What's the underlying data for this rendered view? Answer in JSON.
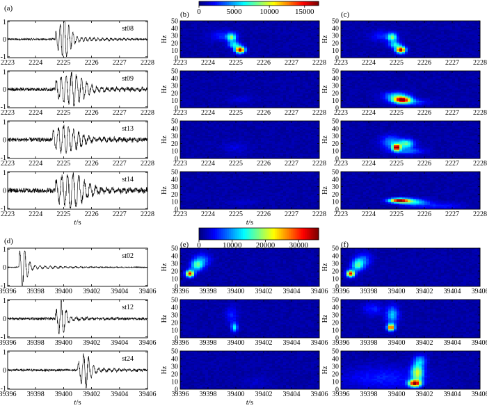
{
  "chart_data": {
    "type": "mixed",
    "panel_labels": [
      "(a)",
      "(b)",
      "(c)",
      "(d)",
      "(e)",
      "(f)"
    ],
    "colorbars": [
      {
        "ticks": [
          0,
          5000,
          10000,
          15000
        ],
        "range": [
          0,
          17000
        ],
        "colormap": "jet"
      },
      {
        "ticks": [
          0,
          10000,
          20000,
          30000
        ],
        "range": [
          0,
          36000
        ],
        "colormap": "jet"
      }
    ],
    "xlabel": "t/s",
    "ylabel_spec": "Hz",
    "groups": [
      {
        "wave_panel": "(a)",
        "spec_panels": [
          "(b)",
          "(c)"
        ],
        "xlim": [
          2223,
          2228
        ],
        "xticks": [
          2223,
          2224,
          2225,
          2226,
          2227,
          2228
        ],
        "wave_yticks": [
          -1,
          0,
          1
        ],
        "spec_yticks": [
          0,
          10,
          20,
          30,
          40,
          50
        ],
        "stations": [
          {
            "name": "st08",
            "onset": 2224.7,
            "peak": 2225.0,
            "duration": 0.6,
            "amplitude": 1.0,
            "freq_hz": 12,
            "noise": 0.06,
            "b_blobs": [
              {
                "t": 2225.15,
                "f": 11,
                "st": 0.12,
                "sf": 3,
                "a": 1.0
              },
              {
                "t": 2224.85,
                "f": 28,
                "st": 0.12,
                "sf": 4,
                "a": 0.45
              },
              {
                "t": 2224.95,
                "f": 18,
                "st": 0.15,
                "sf": 3,
                "a": 0.35
              },
              {
                "t": 2224.5,
                "f": 30,
                "st": 0.3,
                "sf": 5,
                "a": 0.12
              }
            ],
            "c_blobs": [
              {
                "t": 2225.15,
                "f": 11,
                "st": 0.12,
                "sf": 3,
                "a": 1.0
              },
              {
                "t": 2224.85,
                "f": 28,
                "st": 0.12,
                "sf": 4,
                "a": 0.45
              },
              {
                "t": 2224.95,
                "f": 18,
                "st": 0.15,
                "sf": 3,
                "a": 0.35
              },
              {
                "t": 2224.5,
                "f": 30,
                "st": 0.3,
                "sf": 5,
                "a": 0.12
              }
            ]
          },
          {
            "name": "st09",
            "onset": 2224.7,
            "peak": 2225.2,
            "duration": 1.2,
            "amplitude": 0.85,
            "freq_hz": 10,
            "noise": 0.1,
            "b_blobs": [
              {
                "t": 2225.2,
                "f": 12,
                "st": 0.3,
                "sf": 4,
                "a": 0.05
              }
            ],
            "c_blobs": [
              {
                "t": 2225.2,
                "f": 11,
                "st": 0.22,
                "sf": 3,
                "a": 0.85
              },
              {
                "t": 2225.0,
                "f": 16,
                "st": 0.3,
                "sf": 4,
                "a": 0.35
              },
              {
                "t": 2225.5,
                "f": 8,
                "st": 0.4,
                "sf": 3,
                "a": 0.2
              }
            ]
          },
          {
            "name": "st13",
            "onset": 2224.6,
            "peak": 2225.0,
            "duration": 1.3,
            "amplitude": 0.7,
            "freq_hz": 10,
            "noise": 0.12,
            "b_blobs": [
              {
                "t": 2225.0,
                "f": 15,
                "st": 0.3,
                "sf": 5,
                "a": 0.06
              }
            ],
            "c_blobs": [
              {
                "t": 2225.0,
                "f": 15,
                "st": 0.1,
                "sf": 3,
                "a": 0.95
              },
              {
                "t": 2225.35,
                "f": 20,
                "st": 0.2,
                "sf": 4,
                "a": 0.45
              },
              {
                "t": 2224.8,
                "f": 22,
                "st": 0.25,
                "sf": 6,
                "a": 0.25
              },
              {
                "t": 2225.4,
                "f": 10,
                "st": 0.4,
                "sf": 3,
                "a": 0.2
              }
            ]
          },
          {
            "name": "st14",
            "onset": 2224.7,
            "peak": 2225.2,
            "duration": 1.3,
            "amplitude": 0.9,
            "freq_hz": 9,
            "noise": 0.14,
            "b_blobs": [
              {
                "t": 2225.2,
                "f": 10,
                "st": 0.4,
                "sf": 3,
                "a": 0.04
              }
            ],
            "c_blobs": [
              {
                "t": 2225.1,
                "f": 12,
                "st": 0.25,
                "sf": 2,
                "a": 1.0
              },
              {
                "t": 2225.6,
                "f": 10,
                "st": 0.35,
                "sf": 3,
                "a": 0.35
              },
              {
                "t": 2226.5,
                "f": 5,
                "st": 0.6,
                "sf": 3,
                "a": 0.12
              }
            ]
          }
        ]
      },
      {
        "wave_panel": "(d)",
        "spec_panels": [
          "(e)",
          "(f)"
        ],
        "xlim": [
          39396,
          39406
        ],
        "xticks": [
          39396,
          39398,
          39400,
          39402,
          39404,
          39406
        ],
        "wave_yticks": [
          -1,
          0,
          1
        ],
        "spec_yticks": [
          0,
          10,
          20,
          30,
          40,
          50
        ],
        "stations": [
          {
            "name": "st02",
            "onset": 39396.8,
            "peak": 39397.0,
            "duration": 0.9,
            "amplitude": 1.0,
            "freq_hz": 10,
            "noise": 0.03,
            "b_blobs": [
              {
                "t": 39396.7,
                "f": 17,
                "st": 0.2,
                "sf": 3,
                "a": 0.9
              },
              {
                "t": 39397.2,
                "f": 28,
                "st": 0.3,
                "sf": 5,
                "a": 0.4
              },
              {
                "t": 39397.6,
                "f": 35,
                "st": 0.4,
                "sf": 6,
                "a": 0.2
              }
            ],
            "c_blobs": [
              {
                "t": 39396.7,
                "f": 17,
                "st": 0.2,
                "sf": 3,
                "a": 0.9
              },
              {
                "t": 39397.2,
                "f": 28,
                "st": 0.3,
                "sf": 5,
                "a": 0.4
              },
              {
                "t": 39397.6,
                "f": 35,
                "st": 0.4,
                "sf": 6,
                "a": 0.2
              }
            ]
          },
          {
            "name": "st12",
            "onset": 39399.4,
            "peak": 39399.8,
            "duration": 0.8,
            "amplitude": 0.9,
            "freq_hz": 10,
            "noise": 0.07,
            "b_blobs": [
              {
                "t": 39399.9,
                "f": 14,
                "st": 0.15,
                "sf": 4,
                "a": 0.35
              },
              {
                "t": 39399.7,
                "f": 30,
                "st": 0.3,
                "sf": 8,
                "a": 0.12
              }
            ],
            "c_blobs": [
              {
                "t": 39399.6,
                "f": 14,
                "st": 0.18,
                "sf": 3,
                "a": 0.85
              },
              {
                "t": 39399.7,
                "f": 30,
                "st": 0.3,
                "sf": 8,
                "a": 0.3
              },
              {
                "t": 39398.3,
                "f": 38,
                "st": 0.5,
                "sf": 6,
                "a": 0.12
              }
            ]
          },
          {
            "name": "st24",
            "onset": 39401.0,
            "peak": 39401.5,
            "duration": 1.0,
            "amplitude": 0.9,
            "freq_hz": 10,
            "noise": 0.07,
            "b_blobs": [
              {
                "t": 39401.5,
                "f": 10,
                "st": 0.5,
                "sf": 5,
                "a": 0.04
              }
            ],
            "c_blobs": [
              {
                "t": 39401.3,
                "f": 8,
                "st": 0.3,
                "sf": 3,
                "a": 0.95
              },
              {
                "t": 39401.5,
                "f": 22,
                "st": 0.3,
                "sf": 8,
                "a": 0.55
              },
              {
                "t": 39401.7,
                "f": 38,
                "st": 0.3,
                "sf": 5,
                "a": 0.25
              },
              {
                "t": 39399.0,
                "f": 15,
                "st": 2.0,
                "sf": 10,
                "a": 0.12
              }
            ]
          }
        ]
      }
    ]
  }
}
